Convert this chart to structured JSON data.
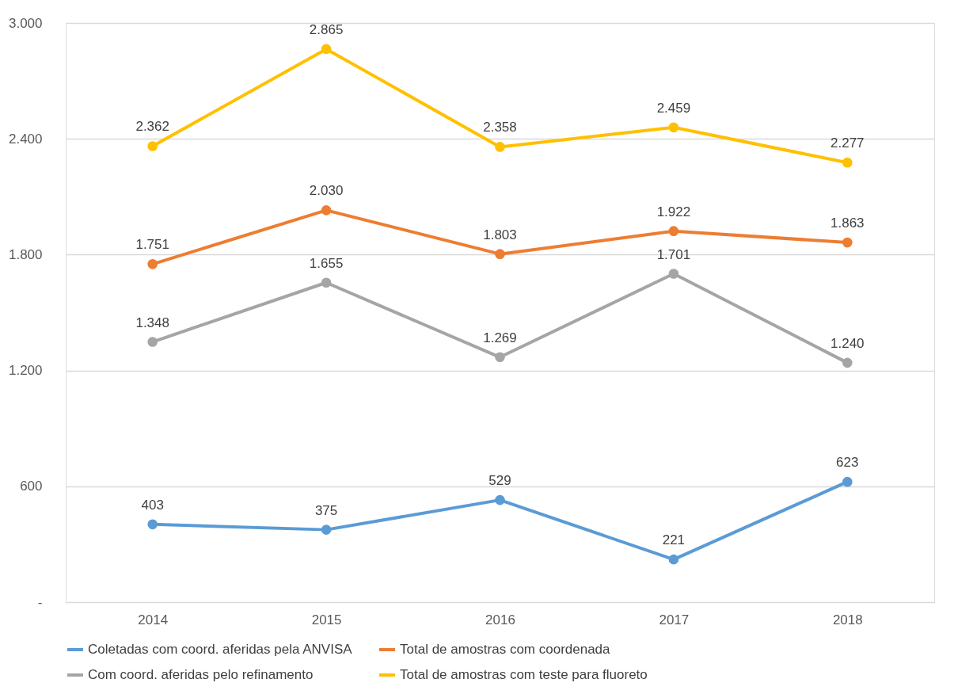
{
  "chart_data": {
    "type": "line",
    "categories": [
      "2014",
      "2015",
      "2016",
      "2017",
      "2018"
    ],
    "series": [
      {
        "name": "Coletadas  com coord. aferidas pela ANVISA",
        "color": "#5b9bd5",
        "values": [
          403,
          375,
          529,
          221,
          623
        ],
        "value_labels": [
          "403",
          "375",
          "529",
          "221",
          "623"
        ]
      },
      {
        "name": "Total de amostras com coordenada",
        "color": "#ed7d31",
        "values": [
          1751,
          2030,
          1803,
          1922,
          1863
        ],
        "value_labels": [
          "1.751",
          "2.030",
          "1.803",
          "1.922",
          "1.863"
        ]
      },
      {
        "name": "Com coord. aferidas pelo refinamento",
        "color": "#a5a5a5",
        "values": [
          1348,
          1655,
          1269,
          1701,
          1240
        ],
        "value_labels": [
          "1.348",
          "1.655",
          "1.269",
          "1.701",
          "1.240"
        ]
      },
      {
        "name": "Total de amostras com teste para fluoreto",
        "color": "#ffc000",
        "values": [
          2362,
          2865,
          2358,
          2459,
          2277
        ],
        "value_labels": [
          "2.362",
          "2.865",
          "2.358",
          "2.459",
          "2.277"
        ]
      }
    ],
    "ylim": [
      0,
      3000
    ],
    "yticks": [
      {
        "value": 0,
        "label": "-"
      },
      {
        "value": 600,
        "label": "600"
      },
      {
        "value": 1200,
        "label": "1.200"
      },
      {
        "value": 1800,
        "label": "1.800"
      },
      {
        "value": 2400,
        "label": "2.400"
      },
      {
        "value": 3000,
        "label": "3.000"
      }
    ],
    "grid": "y",
    "legend": "bottom",
    "marker": "circle",
    "line_style": "solid"
  }
}
